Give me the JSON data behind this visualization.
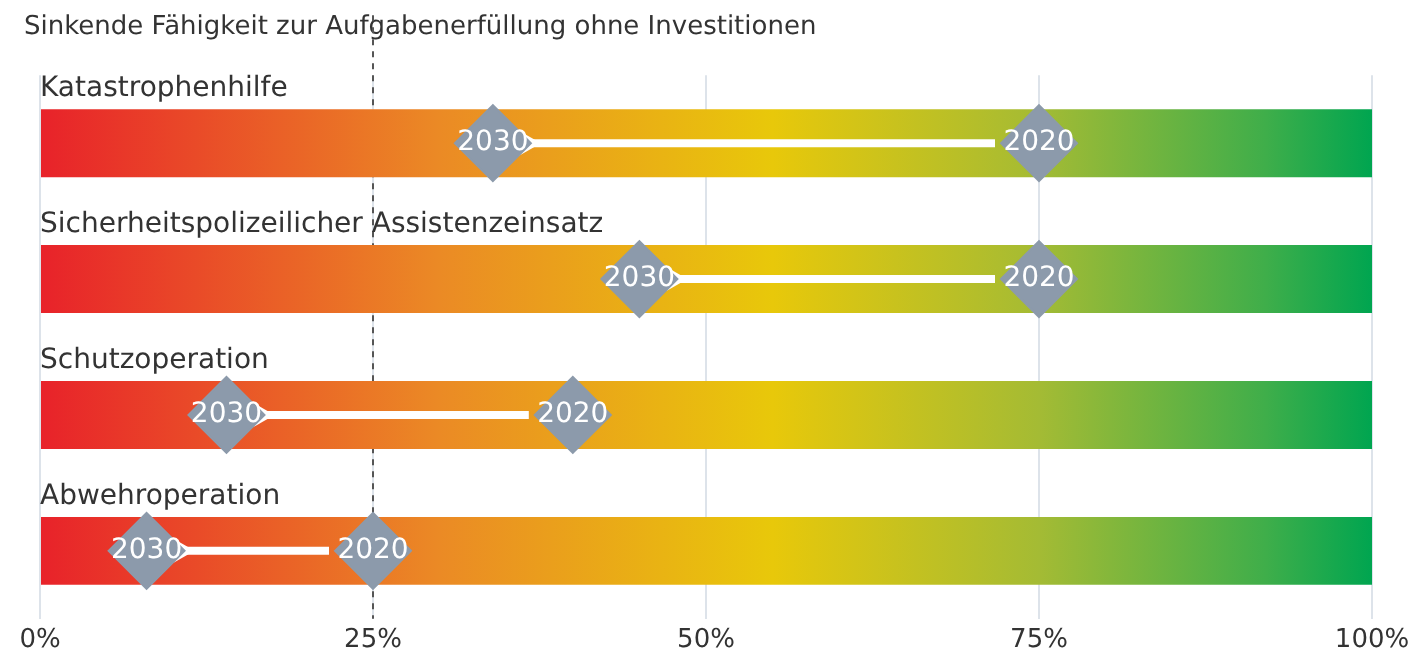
{
  "chart_data": {
    "type": "scatter",
    "title": "Sinkende Fähigkeit zur Aufgabenerfüllung ohne Investitionen",
    "categories": [
      "Katastrophenhilfe",
      "Sicherheitspolizeilicher Assistenzeinsatz",
      "Schutzoperation",
      "Abwehroperation"
    ],
    "orientation": "horizontal",
    "series": [
      {
        "type": "bar",
        "values": [
          100,
          100,
          100,
          100
        ]
      },
      {
        "name": "2020",
        "color": "#8c9aab",
        "values": [
          75,
          75,
          40,
          25
        ]
      },
      {
        "name": "2030",
        "color": "#8c9aab",
        "values": [
          34,
          45,
          14,
          8
        ]
      }
    ],
    "xlim": [
      0,
      100
    ],
    "xticks": [
      {
        "value": 0,
        "label": "0%"
      },
      {
        "value": 25,
        "label": "25%"
      },
      {
        "value": 50,
        "label": "50%"
      },
      {
        "value": 75,
        "label": "75%"
      },
      {
        "value": 100,
        "label": "100%"
      }
    ],
    "ref_lines": [
      {
        "axis": "x",
        "value": 25,
        "label": null,
        "color": "#555555",
        "line_style": "dashed"
      }
    ],
    "grid": "x",
    "legend": false,
    "marker": "diamond"
  }
}
